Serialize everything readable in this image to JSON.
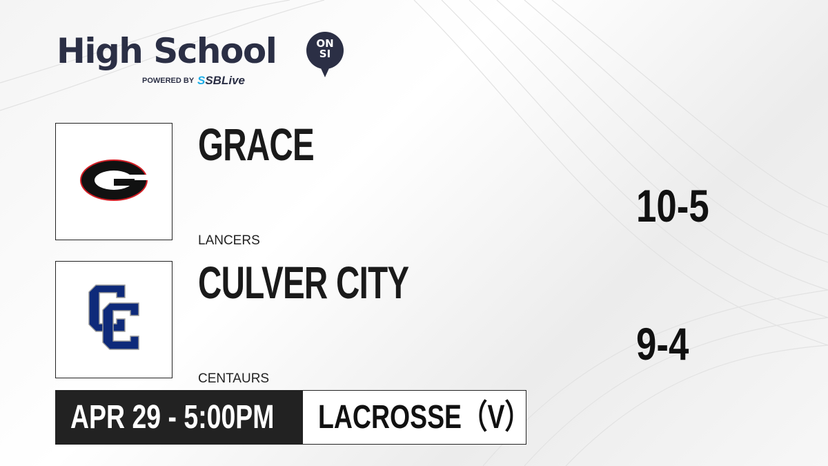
{
  "brand": {
    "title": "High School",
    "badge_top": "ON",
    "badge_bottom": "SI",
    "powered_by": "POWERED BY",
    "partner_prefix": "S",
    "partner": "SBLive"
  },
  "home": {
    "name": "GRACE",
    "mascot": "LANCERS",
    "record": "10-5",
    "logo_letter": "G",
    "logo_color": "#111111",
    "logo_accent": "#d21f26"
  },
  "away": {
    "name": "CULVER CITY",
    "mascot": "CENTAURS",
    "record": "9-4",
    "logo_letters": "CC",
    "logo_color": "#0e2a7a"
  },
  "game": {
    "datetime": "APR 29 - 5:00PM",
    "sport": "LACROSSE（V）"
  }
}
